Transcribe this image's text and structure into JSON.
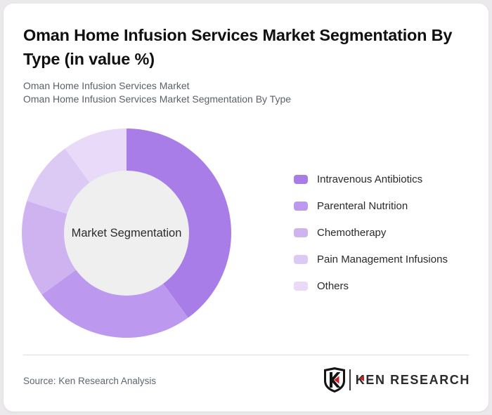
{
  "page": {
    "background_color": "#ebe9eb",
    "card_color": "#ffffff"
  },
  "header": {
    "title": "Oman Home Infusion Services Market Segmentation By Type (in value %)",
    "subtitle_line1": "Oman Home Infusion Services Market",
    "subtitle_line2": "Oman Home Infusion Services Market Segmentation By Type"
  },
  "chart_data": {
    "type": "pie",
    "variant": "donut",
    "title": "Oman Home Infusion Services Market Segmentation By Type (in value %)",
    "center_label": "Market Segmentation",
    "categories": [
      "Intravenous Antibiotics",
      "Parenteral Nutrition",
      "Chemotherapy",
      "Pain Management Infusions",
      "Others"
    ],
    "values": [
      40,
      25,
      15,
      10,
      10
    ],
    "values_note": "percent shares estimated from arc angles; no numeric data labels are rendered in the image",
    "colors": [
      "#a97de8",
      "#bc98ee",
      "#cfb3f1",
      "#dccaf5",
      "#e8daf8"
    ],
    "inner_circle_color": "#f0eff0",
    "start_angle": "top",
    "direction": "clockwise",
    "legend_position": "right",
    "data_labels_shown": false
  },
  "footer": {
    "source": "Source: Ken Research Analysis",
    "logo": {
      "shield_letter": "K",
      "brand_first_letter": "K",
      "brand_rest": "EN RESEARCH",
      "accent_color": "#c8202a",
      "text_color": "#2b2b2b"
    }
  }
}
